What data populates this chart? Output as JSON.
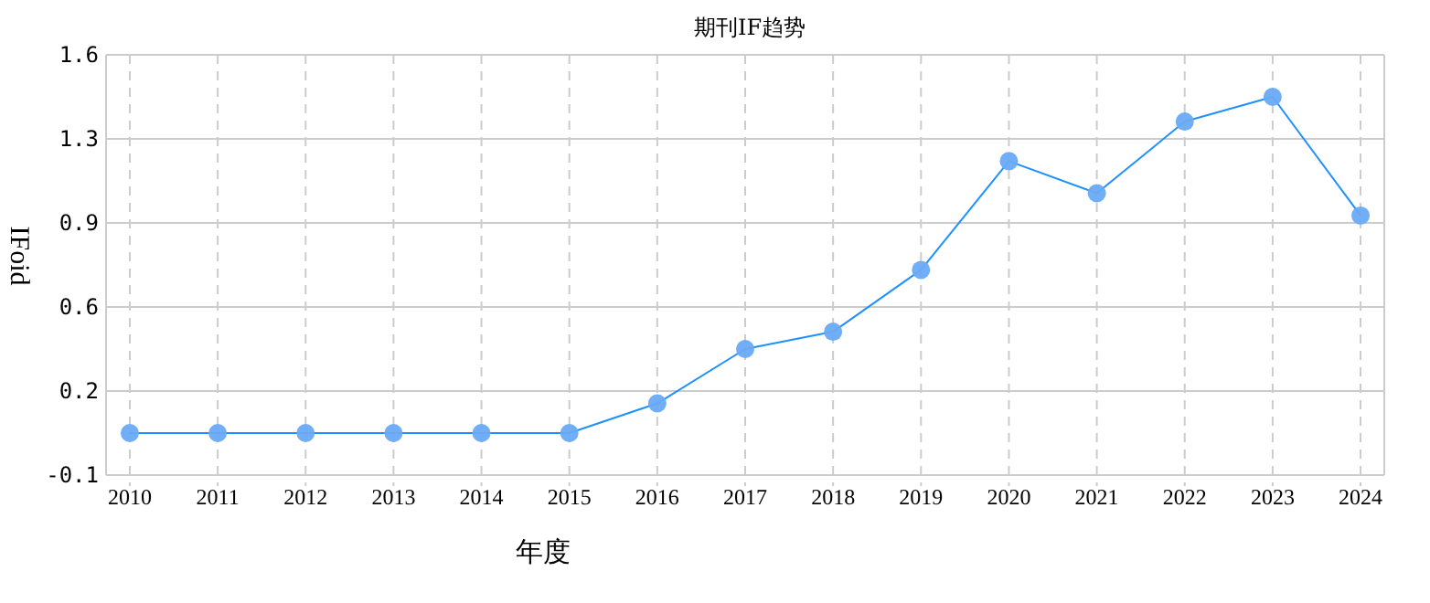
{
  "chart_data": {
    "type": "line",
    "title": "期刊IF趋势",
    "xlabel": "年度",
    "ylabel": "IFoid",
    "categories": [
      "2010",
      "2011",
      "2012",
      "2013",
      "2014",
      "2015",
      "2016",
      "2017",
      "2018",
      "2019",
      "2020",
      "2021",
      "2022",
      "2023",
      "2024"
    ],
    "series": [
      {
        "color": "#1e90ff",
        "values": [
          0.07,
          0.07,
          0.07,
          0.07,
          0.07,
          0.07,
          0.19,
          0.41,
          0.48,
          0.73,
          1.17,
          1.04,
          1.33,
          1.43,
          0.95
        ]
      }
    ],
    "ylim": [
      -0.1,
      1.6
    ],
    "yticks": [
      -0.1,
      {
        "value": 0.24,
        "label": "0.2"
      },
      {
        "value": 0.58,
        "label": "0.6"
      },
      {
        "value": 0.92,
        "label": "0.9"
      },
      {
        "value": 1.26,
        "label": "1.3"
      },
      1.6
    ],
    "grid": true,
    "marker": "circle",
    "line_style": "solid"
  }
}
